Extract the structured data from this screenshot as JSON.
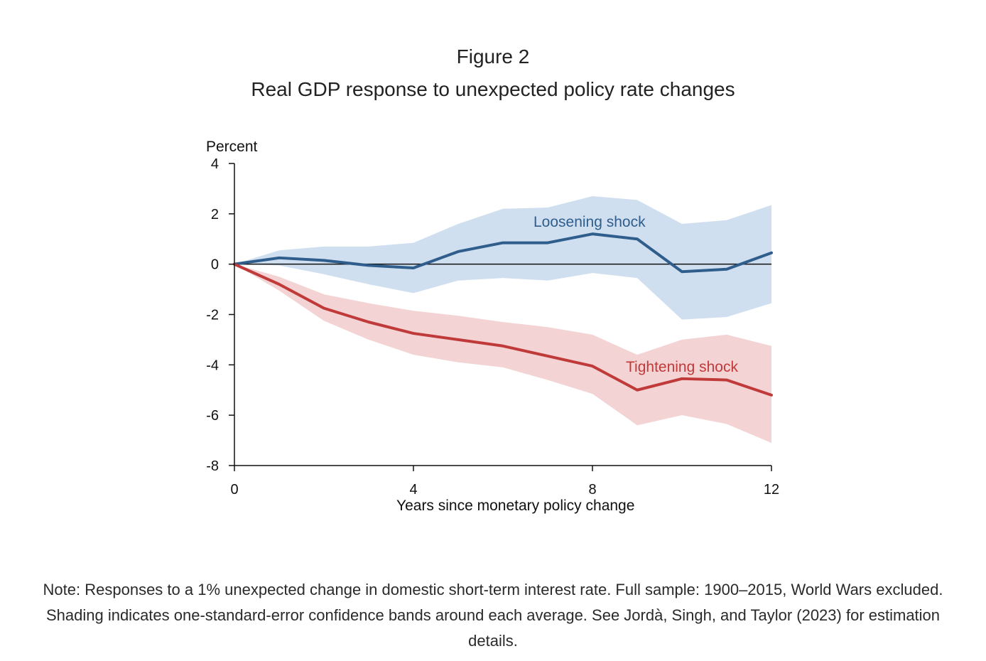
{
  "figure": {
    "label": "Figure 2",
    "title": "Real GDP response to unexpected policy rate changes",
    "note": "Note: Responses to a 1% unexpected change in domestic short-term interest rate. Full sample: 1900–2015, World Wars excluded. Shading indicates one-standard-error confidence bands around each average. See Jordà, Singh, and Taylor (2023) for estimation details."
  },
  "chart_data": {
    "type": "line",
    "title": "Real GDP response to unexpected policy rate changes",
    "xlabel": "Years since monetary policy change",
    "ylabel": "Percent",
    "xlim": [
      0,
      12
    ],
    "ylim": [
      -8,
      4
    ],
    "xticks": [
      0,
      4,
      8,
      12
    ],
    "yticks": [
      4,
      2,
      0,
      -2,
      -4,
      -6,
      -8
    ],
    "zero_line": true,
    "x": [
      0,
      1,
      2,
      3,
      4,
      5,
      6,
      7,
      8,
      9,
      10,
      11,
      12
    ],
    "series": [
      {
        "name": "Loosening shock",
        "color": "#2f5d8c",
        "band_color": "#cfdff0",
        "values": [
          0,
          0.25,
          0.15,
          -0.05,
          -0.15,
          0.5,
          0.85,
          0.85,
          1.2,
          1.0,
          -0.3,
          -0.2,
          0.45
        ],
        "upper": [
          0,
          0.55,
          0.7,
          0.7,
          0.85,
          1.6,
          2.2,
          2.25,
          2.7,
          2.55,
          1.6,
          1.75,
          2.35
        ],
        "lower": [
          0,
          -0.05,
          -0.4,
          -0.8,
          -1.15,
          -0.65,
          -0.55,
          -0.65,
          -0.35,
          -0.55,
          -2.2,
          -2.1,
          -1.55
        ]
      },
      {
        "name": "Tightening shock",
        "color": "#c03a3a",
        "band_color": "#f3d3d3",
        "values": [
          0,
          -0.8,
          -1.75,
          -2.3,
          -2.75,
          -3.0,
          -3.25,
          -3.65,
          -4.05,
          -5.0,
          -4.55,
          -4.6,
          -5.2
        ],
        "upper": [
          0,
          -0.5,
          -1.2,
          -1.55,
          -1.85,
          -2.05,
          -2.3,
          -2.5,
          -2.8,
          -3.6,
          -3.0,
          -2.8,
          -3.25
        ],
        "lower": [
          0,
          -1.05,
          -2.25,
          -3.0,
          -3.6,
          -3.9,
          -4.1,
          -4.6,
          -5.15,
          -6.4,
          -6.0,
          -6.35,
          -7.1
        ]
      }
    ]
  }
}
